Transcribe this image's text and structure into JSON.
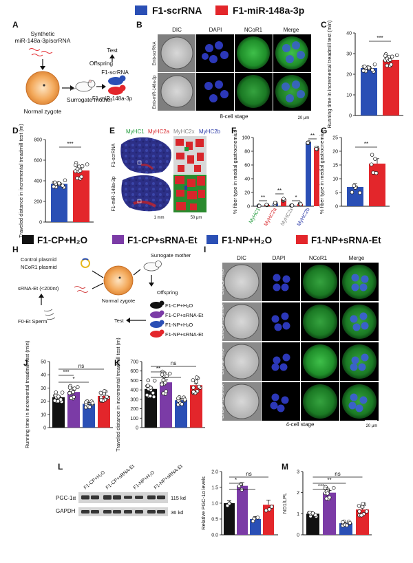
{
  "legend_top": [
    {
      "label": "F1-scrRNA",
      "color": "#2a4fb5"
    },
    {
      "label": "F1-miR-148a-3p",
      "color": "#e3262b"
    }
  ],
  "legend_mid": [
    {
      "label": "F1-CP+H₂O",
      "color": "#111111"
    },
    {
      "label": "F1-CP+sRNA-Et",
      "color": "#7b3ba6"
    },
    {
      "label": "F1-NP+H₂O",
      "color": "#2a4fb5"
    },
    {
      "label": "F1-NP+sRNA-Et",
      "color": "#e3262b"
    }
  ],
  "panel_letters": [
    "A",
    "B",
    "C",
    "D",
    "E",
    "F",
    "G",
    "H",
    "I",
    "J",
    "K",
    "L",
    "M"
  ],
  "panelA": {
    "synthetic": "Synthetic",
    "synthetic2": "miR-148a-3p/scrRNA",
    "normal_zygote": "Normal zygote",
    "surrogate": "Surrogate mother",
    "test": "Test",
    "offspring": "Offspring",
    "f1_scr": "F1-scrRNA",
    "f1_mir": "F1-miR-148a-3p"
  },
  "panelB": {
    "columns": [
      "DIC",
      "DAPI",
      "NCoR1",
      "Merge"
    ],
    "rows": [
      "Emb-scrRNA",
      "Emb-miR-148a-3p"
    ],
    "stage": "8-cell stage",
    "scale": "20 μm"
  },
  "panelC": {
    "ylabel": "Running time in incremental treadmill test (min)",
    "ticks": [
      "0",
      "10",
      "20",
      "30",
      "40"
    ],
    "sig": "***"
  },
  "panelD": {
    "ylabel": "Traveled distance in incremental treadmill test (m)",
    "ticks": [
      "0",
      "200",
      "400",
      "600",
      "800"
    ],
    "sig": "***"
  },
  "panelE": {
    "header": [
      {
        "label": "MyHC1",
        "color": "#1f9a3a"
      },
      {
        "label": "MyHC2a",
        "color": "#d8262b"
      },
      {
        "label": "MyHC2x",
        "color": "#888888"
      },
      {
        "label": "MyHC2b",
        "color": "#2b39a8"
      }
    ],
    "rows": [
      "F1-scrRNA",
      "F1-miR-148a-3p"
    ],
    "scale1": "1 mm",
    "scale2": "50 μm"
  },
  "panelF": {
    "ylabel": "% fiber type in medial gastrocnemius",
    "ticks": [
      "0",
      "20",
      "40",
      "60",
      "80",
      "100"
    ],
    "categories": [
      {
        "label": "MyHC1",
        "color": "#1f9a3a",
        "sig": "**"
      },
      {
        "label": "MyHC2a",
        "color": "#d8262b",
        "sig": "**"
      },
      {
        "label": "MyHC2x",
        "color": "#888888",
        "sig": "*"
      },
      {
        "label": "MyHC2b",
        "color": "#2b39a8",
        "sig": "**"
      }
    ]
  },
  "panelG": {
    "ylabel": "% fiber type in medial gastrocnemius",
    "ticks": [
      "0",
      "5",
      "10",
      "15",
      "20",
      "25"
    ],
    "sig": "**"
  },
  "panelH": {
    "control": "Control plasmid",
    "ncor1": "NCoR1 plasmid",
    "srna": "sRNA-Et (<200nt)",
    "sperm": "F0-Et Sperm",
    "zygote": "Normal zygote",
    "surrogate": "Surrogate mother",
    "offspring": "Offspring",
    "test": "Test",
    "groups": [
      "F1-CP+H₂O",
      "F1-CP+sRNA-Et",
      "F1-NP+H₂O",
      "F1-NP+sRNA-Et"
    ]
  },
  "panelI": {
    "columns": [
      "DIC",
      "DAPI",
      "NCoR1",
      "Merge"
    ],
    "rows": [
      "Emb-CP+H₂O",
      "Emb-CP+Et-sRNA",
      "Emb-NP+H₂O",
      "Emb-NP+Et-sRNA"
    ],
    "stage": "4-cell stage",
    "scale": "20 μm"
  },
  "panelJ": {
    "ylabel": "Running time in incremental treadmill test (min)",
    "ticks": [
      "0",
      "10",
      "20",
      "30",
      "40",
      "50"
    ],
    "sigs": [
      "ns",
      "***",
      "*"
    ]
  },
  "panelK": {
    "ylabel": "Traveled distance in incremental treadmill test (m)",
    "ticks": [
      "0",
      "100",
      "200",
      "300",
      "400",
      "500",
      "600",
      "700"
    ],
    "sigs": [
      "ns",
      "**",
      "*"
    ]
  },
  "panelL": {
    "lanes": [
      "F1-CP+H₂O",
      "F1-CP+sRNA-Et",
      "F1-NP+H₂O",
      "F1-NP+sRNA-Et"
    ],
    "bands": [
      {
        "name": "PGC-1α",
        "kda": "115 kd"
      },
      {
        "name": "GAPDH",
        "kda": "36 kd"
      }
    ],
    "ylabel": "Relative PGC-1α levels",
    "ticks": [
      "0.0",
      "0.5",
      "1.0",
      "1.5",
      "2.0"
    ],
    "sigs": [
      "ns",
      "*",
      "*"
    ]
  },
  "panelM": {
    "ylabel": "ND1/LPL",
    "ticks": [
      "0",
      "1",
      "2",
      "3"
    ],
    "sigs": [
      "ns",
      "**",
      "***"
    ]
  },
  "chart_data": [
    {
      "panel": "C",
      "type": "bar",
      "categories": [
        "F1-scrRNA",
        "F1-miR-148a-3p"
      ],
      "values": [
        23,
        27
      ],
      "ylabel": "Running time in incremental treadmill test (min)",
      "ylim": [
        0,
        40
      ]
    },
    {
      "panel": "D",
      "type": "bar",
      "categories": [
        "F1-scrRNA",
        "F1-miR-148a-3p"
      ],
      "values": [
        370,
        500
      ],
      "ylabel": "Traveled distance in incremental treadmill test (m)",
      "ylim": [
        0,
        800
      ]
    },
    {
      "panel": "F",
      "type": "bar",
      "categories": [
        "MyHC1",
        "MyHC2a",
        "MyHC2x",
        "MyHC2b"
      ],
      "series": [
        {
          "values": [
            1,
            4,
            1,
            93
          ]
        },
        {
          "values": [
            2,
            10,
            3,
            85
          ]
        }
      ],
      "ylabel": "% fiber type in medial gastrocnemius",
      "ylim": [
        0,
        100
      ]
    },
    {
      "panel": "G",
      "type": "bar",
      "categories": [
        "F1-scrRNA",
        "F1-miR-148a-3p"
      ],
      "values": [
        7,
        15.5
      ],
      "ylabel": "% fiber type in medial gastrocnemius",
      "ylim": [
        0,
        25
      ]
    },
    {
      "panel": "J",
      "type": "bar",
      "categories": [
        "F1-CP+H₂O",
        "F1-CP+sRNA-Et",
        "F1-NP+H₂O",
        "F1-NP+sRNA-Et"
      ],
      "values": [
        23,
        27,
        18,
        24
      ],
      "ylabel": "Running time in incremental treadmill test (min)",
      "ylim": [
        0,
        50
      ]
    },
    {
      "panel": "K",
      "type": "bar",
      "categories": [
        "F1-CP+H₂O",
        "F1-CP+sRNA-Et",
        "F1-NP+H₂O",
        "F1-NP+sRNA-Et"
      ],
      "values": [
        410,
        480,
        290,
        450
      ],
      "ylabel": "Traveled distance in incremental treadmill test (m)",
      "ylim": [
        0,
        700
      ]
    },
    {
      "panel": "L",
      "type": "bar",
      "categories": [
        "F1-CP+H₂O",
        "F1-CP+sRNA-Et",
        "F1-NP+H₂O",
        "F1-NP+sRNA-Et"
      ],
      "values": [
        1.0,
        1.55,
        0.5,
        0.95
      ],
      "ylabel": "Relative PGC-1α levels",
      "ylim": [
        0,
        2.0
      ]
    },
    {
      "panel": "M",
      "type": "bar",
      "categories": [
        "F1-CP+H₂O",
        "F1-CP+sRNA-Et",
        "F1-NP+H₂O",
        "F1-NP+sRNA-Et"
      ],
      "values": [
        1.0,
        2.0,
        0.55,
        1.2
      ],
      "ylabel": "ND1/LPL",
      "ylim": [
        0,
        3
      ]
    }
  ]
}
